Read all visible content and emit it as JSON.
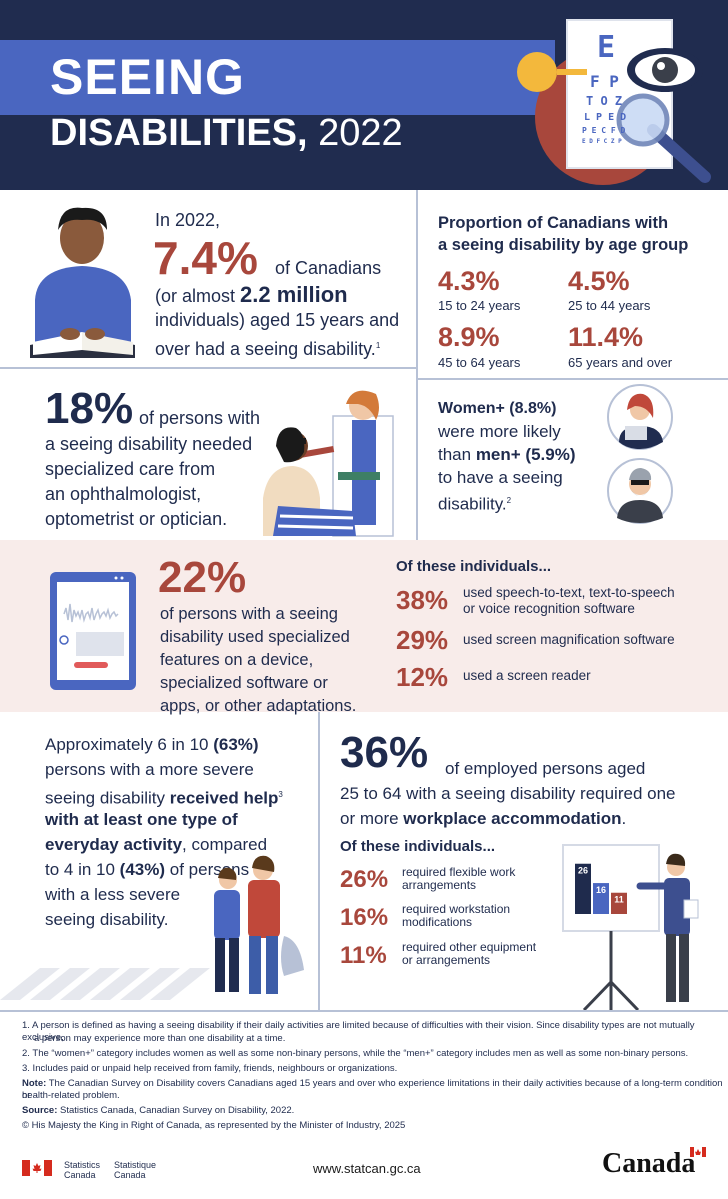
{
  "header": {
    "title_line1": "SEEING",
    "title_line2_bold": "DISABILITIES,",
    "title_line2_year": "2022",
    "eye_chart_letters": [
      "E",
      "F P",
      "T O Z",
      "L P E D",
      "P E C F D",
      "E D F C Z P"
    ]
  },
  "intro": {
    "line1": "In 2022,",
    "percent": "7.4%",
    "of_canadians": "of Canadians",
    "line3_pre": "(or almost ",
    "line3_bold": "2.2 million",
    "line4": "individuals) aged 15 years and",
    "line5": "over had a seeing disability.",
    "footnote_ref": "1"
  },
  "age_group": {
    "title_line1": "Proportion of Canadians with",
    "title_line2": "a seeing disability by age group",
    "items": [
      {
        "value": "4.3%",
        "label": "15 to 24 years"
      },
      {
        "value": "4.5%",
        "label": "25 to 44 years"
      },
      {
        "value": "8.9%",
        "label": "45 to 64 years"
      },
      {
        "value": "11.4%",
        "label": "65 years and over"
      }
    ]
  },
  "specialized_care": {
    "percent": "18%",
    "line1_rest": "of persons with",
    "line2": "a seeing disability needed",
    "line3": "specialized care from",
    "line4": "an ophthalmologist,",
    "line5": "optometrist or optician."
  },
  "gender": {
    "women_bold": "Women+ (8.8%)",
    "line2": "were more likely",
    "line3_pre": "than ",
    "men_bold": "men+ (5.9%)",
    "line4": "to have a seeing",
    "line5": "disability.",
    "footnote_ref": "2"
  },
  "adaptations": {
    "percent": "22%",
    "line1": "of persons with a seeing",
    "line2": "disability used specialized",
    "line3": "features on a device,",
    "line4": "specialized software or",
    "line5": "apps, or other adaptations.",
    "subtitle": "Of these individuals...",
    "items": [
      {
        "value": "38%",
        "line1": "used speech-to-text, text-to-speech",
        "line2": "or voice recognition software"
      },
      {
        "value": "29%",
        "line1": "used screen magnification software",
        "line2": ""
      },
      {
        "value": "12%",
        "line1": "used a screen reader",
        "line2": ""
      }
    ]
  },
  "help": {
    "line1_pre": "Approximately 6 in 10 ",
    "line1_bold": "(63%)",
    "line2": "persons with a more severe",
    "line3_pre": "seeing disability ",
    "line3_bold": "received help",
    "line3_ref": "3",
    "line4_bold": "with at least one type of",
    "line5_bold": "everyday activity",
    "line5_rest": ", compared",
    "line6_pre": "to 4 in 10 ",
    "line6_bold": "(43%)",
    "line6_rest": " of persons",
    "line7": "with a less severe",
    "line8": "seeing disability."
  },
  "workplace": {
    "percent": "36%",
    "line1_rest": "of employed persons aged",
    "line2": "25 to 64 with a seeing disability required one",
    "line3_pre": "or more ",
    "line3_bold": "workplace accommodation",
    "line3_end": ".",
    "subtitle": "Of these individuals...",
    "items": [
      {
        "value": "26%",
        "line1": "required flexible work",
        "line2": "arrangements"
      },
      {
        "value": "16%",
        "line1": "required workstation",
        "line2": "modifications"
      },
      {
        "value": "11%",
        "line1": "required other equipment",
        "line2": "or arrangements"
      }
    ]
  },
  "chart_data": {
    "type": "bar",
    "categories": [
      "",
      "",
      ""
    ],
    "values": [
      26,
      16,
      11
    ],
    "data_labels": [
      "26",
      "16",
      "11"
    ],
    "colors": [
      "#1f2b4d",
      "#4a66c0",
      "#a8473c"
    ],
    "title": "",
    "xlabel": "",
    "ylabel": "",
    "ylim": [
      0,
      30
    ]
  },
  "footnotes": {
    "n1a": "1.  A person is defined as having a seeing disability if their daily activities are limited because of difficulties with their vision. Since disability types are not mutually exclusive,",
    "n1b": "a person may experience more than one disability at a time.",
    "n2": "2.  The “women+” category includes women as well as some non-binary persons, while the “men+” category includes men as well as some non-binary persons.",
    "n3": "3.  Includes paid or unpaid help received from family, friends, neighbours or organizations.",
    "note_label": "Note:",
    "note_a": " The Canadian Survey on Disability covers Canadians aged 15 years and over who experience limitations in their daily activities because of a long-term condition or",
    "note_b": "health-related problem.",
    "source_label": "Source:",
    "source_text": " Statistics Canada, Canadian Survey on Disability, 2022.",
    "copyright": "© His Majesty the King in Right of Canada, as represented by the Minister of Industry, 2025"
  },
  "footer": {
    "stats_en_1": "Statistics",
    "stats_en_2": "Canada",
    "stats_fr_1": "Statistique",
    "stats_fr_2": "Canada",
    "url": "www.statcan.gc.ca",
    "wordmark": "Canada"
  },
  "colors": {
    "navy": "#1f2b4d",
    "blue": "#4a66c0",
    "red": "#a8473c",
    "pink_band": "#f8ecea",
    "divider": "#b7c1d6"
  }
}
